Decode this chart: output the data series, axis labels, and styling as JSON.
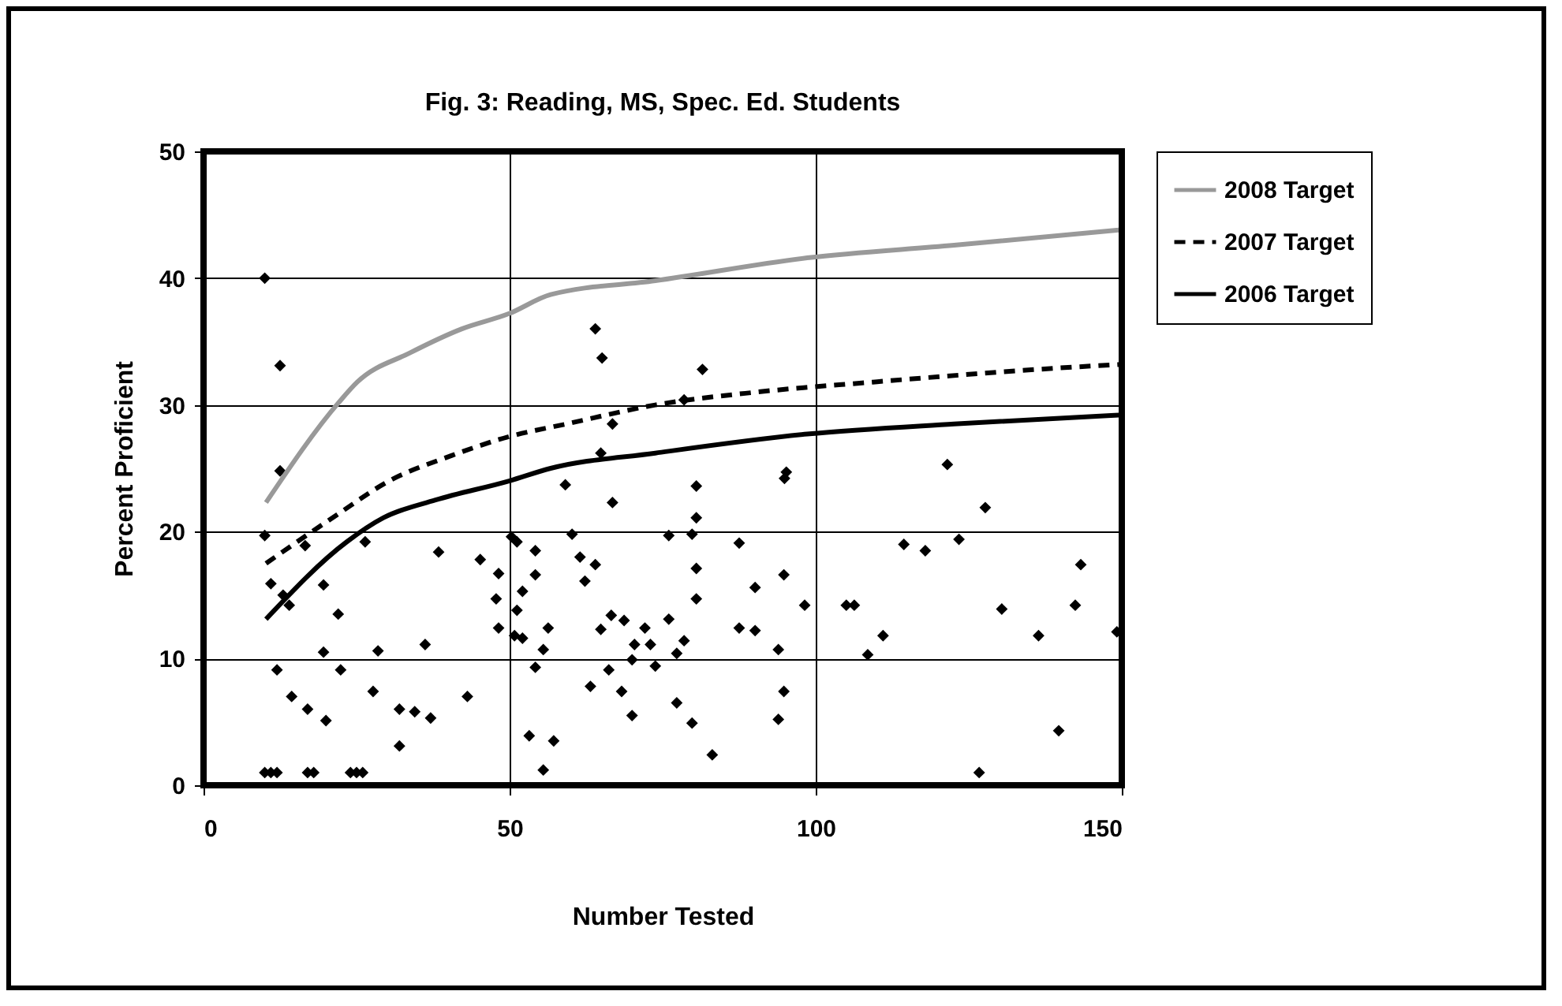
{
  "chart_data": {
    "type": "scatter",
    "title": "Fig. 3: Reading, MS, Spec. Ed. Students",
    "xlabel": "Number Tested",
    "ylabel": "Percent Proficient",
    "xlim": [
      0,
      150
    ],
    "xticks": [
      0,
      50,
      100,
      150
    ],
    "ylim": [
      0,
      50
    ],
    "yticks": [
      0,
      10,
      20,
      30,
      40,
      50
    ],
    "grid": true,
    "legend": "right",
    "series": [
      {
        "type": "line",
        "name": "2008 Target",
        "color": "#999999",
        "line_style": "solid",
        "x": [
          10.2,
          22.1,
          25.1,
          33.7,
          42.2,
          49.9,
          56.7,
          73.8,
          98.6,
          122.6,
          149.5
        ],
        "values": [
          22.3,
          30.2,
          31.8,
          34.1,
          36.0,
          37.2,
          38.7,
          39.8,
          41.6,
          42.6,
          43.8
        ]
      },
      {
        "type": "line",
        "name": "2007 Target",
        "color": "#000000",
        "line_style": "dashed",
        "x": [
          10.2,
          21.7,
          30.3,
          40.5,
          49.9,
          59.3,
          73.8,
          90.1,
          109.3,
          142.6,
          150
        ],
        "values": [
          17.5,
          21.3,
          24.0,
          26.0,
          27.5,
          28.5,
          30.0,
          31.0,
          31.8,
          33.0,
          33.2
        ]
      },
      {
        "type": "line",
        "name": "2006 Target",
        "color": "#000000",
        "line_style": "solid",
        "x": [
          10.2,
          23.4,
          29.4,
          37.9,
          49.9,
          56.7,
          73.8,
          98.6,
          122.6,
          149.5
        ],
        "values": [
          13.1,
          19.2,
          21.1,
          22.5,
          24.0,
          25.0,
          26.2,
          27.7,
          28.5,
          29.2
        ]
      },
      {
        "color": "#000000",
        "marker": "diamond",
        "x": [
          10,
          12.5,
          12.5,
          10,
          11,
          14,
          13,
          19.6,
          22,
          16.6,
          26.4,
          12,
          19.6,
          22.4,
          14.4,
          17,
          20,
          28.5,
          27.7,
          36.2,
          32,
          34.5,
          37.1,
          32,
          38.4,
          43.1,
          45.2,
          48.2,
          47.8,
          48.2,
          10,
          11,
          12,
          17,
          18,
          24,
          25,
          26,
          64,
          65.1,
          81.5,
          66.8,
          78.5,
          64.9,
          59.1,
          66.8,
          80.5,
          80.5,
          95.2,
          94.9,
          50.3,
          51.2,
          60.2,
          76,
          79.8,
          87.5,
          54.2,
          61.5,
          64,
          62.3,
          54.2,
          52.1,
          51.2,
          80.5,
          80.5,
          90.1,
          94.8,
          98.2,
          50.8,
          52.1,
          56.3,
          55.5,
          54.2,
          64.9,
          66.6,
          68.7,
          72.1,
          70.4,
          73,
          70,
          76,
          78.5,
          77.3,
          73.8,
          87.5,
          90.1,
          93.9,
          66.2,
          63.2,
          68.3,
          70,
          77.3,
          79.8,
          94.8,
          93.9,
          53.2,
          57.2,
          55.5,
          83.1,
          121.5,
          127.7,
          114.4,
          117.9,
          123.4,
          105,
          106.3,
          111,
          108.5,
          130.4,
          136.4,
          142.4,
          143.3,
          149.2,
          139.7,
          126.7
        ],
        "values": [
          40,
          33.1,
          24.8,
          19.7,
          15.9,
          14.2,
          15,
          15.8,
          13.5,
          18.9,
          19.2,
          9.1,
          10.5,
          9.1,
          7.0,
          6.0,
          5.1,
          10.6,
          7.4,
          11.1,
          6,
          5.8,
          5.3,
          3.1,
          18.4,
          7.0,
          17.8,
          16.7,
          14.7,
          12.4,
          1,
          1,
          1,
          1,
          1,
          1,
          1,
          1,
          36.0,
          33.7,
          32.8,
          28.5,
          30.4,
          26.2,
          23.7,
          22.3,
          23.6,
          21.1,
          24.7,
          24.2,
          19.6,
          19.2,
          19.8,
          19.7,
          19.8,
          19.1,
          18.5,
          18.0,
          17.4,
          16.1,
          16.6,
          15.3,
          13.8,
          17.1,
          14.7,
          15.6,
          16.6,
          14.2,
          11.8,
          11.6,
          12.4,
          10.7,
          9.3,
          12.3,
          13.4,
          13.0,
          12.4,
          11.1,
          11.1,
          9.9,
          13.1,
          11.4,
          10.4,
          9.4,
          12.4,
          12.2,
          10.7,
          9.1,
          7.8,
          7.4,
          5.5,
          6.5,
          4.9,
          7.4,
          5.2,
          3.9,
          3.5,
          1.2,
          2.4,
          25.3,
          21.9,
          19.0,
          18.5,
          19.4,
          14.2,
          14.2,
          11.8,
          10.3,
          13.9,
          11.8,
          14.2,
          17.4,
          12.1,
          4.3,
          1.0
        ]
      }
    ]
  }
}
